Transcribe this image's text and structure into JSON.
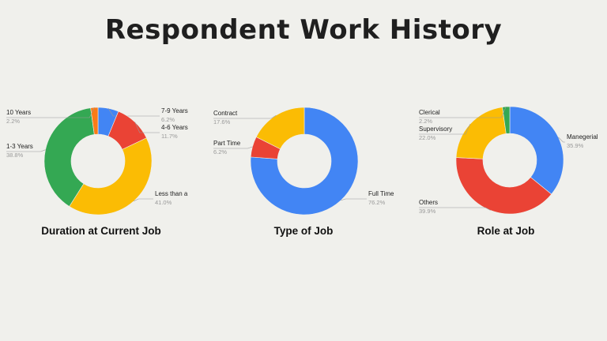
{
  "title": "Respondent Work History",
  "chart_data": [
    {
      "type": "pie",
      "donut": true,
      "title": "Duration at Current Job",
      "slices": [
        {
          "label": "7-9 Years",
          "value_label": "6.2%",
          "value": 6.2,
          "color": "#4285f4"
        },
        {
          "label": "4-6 Years",
          "value_label": "11.7%",
          "value": 11.7,
          "color": "#ea4335"
        },
        {
          "label": "Less than a",
          "value_label": "41.0%",
          "value": 41.0,
          "color": "#fbbc04"
        },
        {
          "label": "1-3 Years",
          "value_label": "38.8%",
          "value": 38.8,
          "color": "#34a853"
        },
        {
          "label": "10 Years",
          "value_label": "2.2%",
          "value": 2.2,
          "color": "#fa7b17"
        }
      ]
    },
    {
      "type": "pie",
      "donut": true,
      "title": "Type of Job",
      "slices": [
        {
          "label": "Full Time",
          "value_label": "76.2%",
          "value": 76.2,
          "color": "#4285f4"
        },
        {
          "label": "Part Time",
          "value_label": "6.2%",
          "value": 6.2,
          "color": "#ea4335"
        },
        {
          "label": "Contract",
          "value_label": "17.6%",
          "value": 17.6,
          "color": "#fbbc04"
        }
      ]
    },
    {
      "type": "pie",
      "donut": true,
      "title": "Role at Job",
      "slices": [
        {
          "label": "Manegerial",
          "value_label": "35.9%",
          "value": 35.9,
          "color": "#4285f4"
        },
        {
          "label": "Others",
          "value_label": "39.9%",
          "value": 39.9,
          "color": "#ea4335"
        },
        {
          "label": "Supervisory",
          "value_label": "22.0%",
          "value": 22.0,
          "color": "#fbbc04"
        },
        {
          "label": "Clerical",
          "value_label": "2.2%",
          "value": 2.2,
          "color": "#34a853"
        }
      ]
    }
  ]
}
